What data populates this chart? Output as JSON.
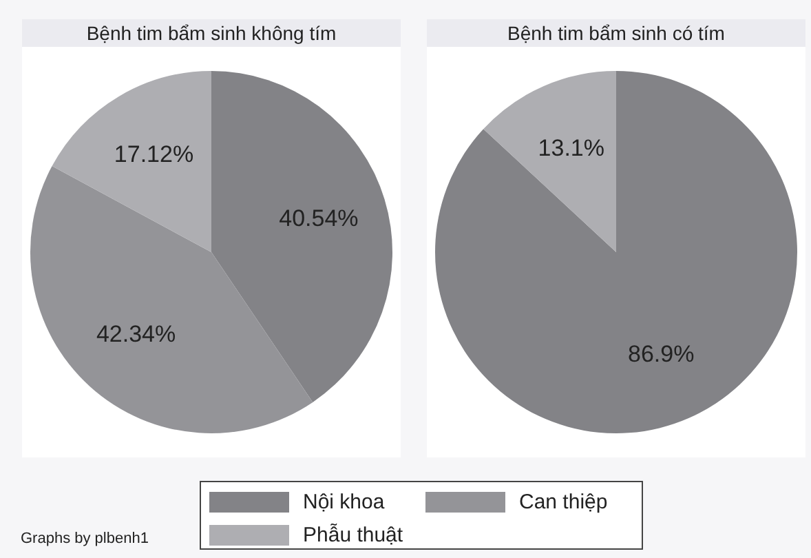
{
  "chart_data": [
    {
      "type": "pie",
      "title": "Bệnh tim bẩm sinh không tím",
      "categories": [
        "Nội khoa",
        "Can thiệp",
        "Phẫu thuật"
      ],
      "values": [
        40.54,
        42.34,
        17.12
      ],
      "colors": [
        "#838387",
        "#949498",
        "#aeaeb2"
      ],
      "value_labels": [
        "40.54%",
        "42.34%",
        "17.12%"
      ],
      "legend": "bottom",
      "annotations": [
        "Graphs by plbenh1"
      ]
    },
    {
      "type": "pie",
      "title": "Bệnh tim bẩm sinh có tím",
      "categories": [
        null,
        null
      ],
      "values": [
        86.9,
        13.1
      ],
      "colors": [
        "#838387",
        "#aeaeb2"
      ],
      "value_labels": [
        "86.9%",
        "13.1%"
      ]
    }
  ]
}
